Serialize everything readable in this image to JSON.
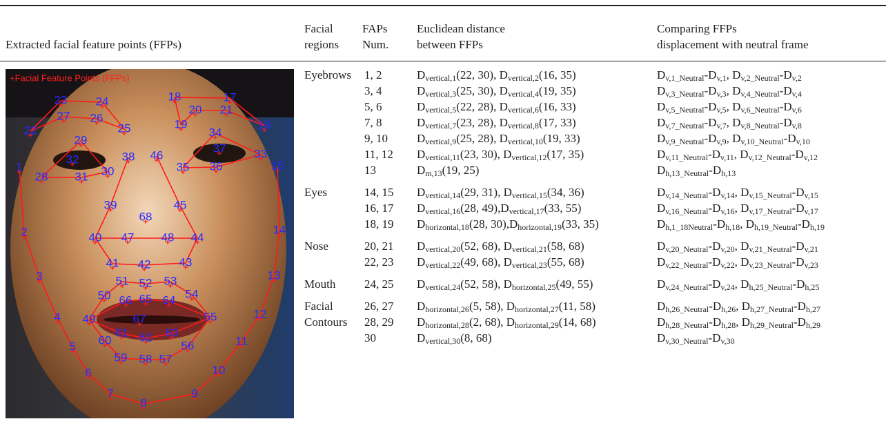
{
  "header": {
    "image_col": "Extracted facial feature points (FFPs)",
    "region_col": [
      "Facial",
      "regions"
    ],
    "faps_col": [
      "FAPs",
      "Num."
    ],
    "distance_col": [
      "Euclidean distance",
      "between FFPs"
    ],
    "compare_col": [
      "Comparing FFPs",
      "displacement with neutral frame"
    ]
  },
  "image": {
    "caption": "+Facial Feature Points (FFPs)",
    "points": [
      "1",
      "2",
      "3",
      "4",
      "5",
      "6",
      "7",
      "8",
      "9",
      "10",
      "11",
      "12",
      "13",
      "14",
      "15",
      "16",
      "17",
      "18",
      "19",
      "20",
      "21",
      "22",
      "23",
      "24",
      "25",
      "26",
      "27",
      "28",
      "29",
      "30",
      "31",
      "32",
      "33",
      "34",
      "35",
      "36",
      "37",
      "38",
      "39",
      "40",
      "41",
      "42",
      "43",
      "44",
      "45",
      "46",
      "47",
      "48",
      "49",
      "50",
      "51",
      "52",
      "53",
      "54",
      "55",
      "56",
      "57",
      "58",
      "59",
      "60",
      "61",
      "62",
      "63",
      "64",
      "65",
      "66",
      "67",
      "68"
    ]
  },
  "groups": [
    {
      "region": "Eyebrows",
      "rows": [
        {
          "faps": "1, 2",
          "distance": [
            "D",
            {
              "sub": "vertical,1"
            },
            "(22, 30), D",
            {
              "sub": "vertical,2"
            },
            "(16, 35)"
          ],
          "compare": [
            "D",
            {
              "sub": "v,1_Neutral"
            },
            "-D",
            {
              "sub": "v,1"
            },
            ", D",
            {
              "sub": "v,2_Neutral"
            },
            "-D",
            {
              "sub": "v,2"
            }
          ]
        },
        {
          "faps": "3, 4",
          "distance": [
            "D",
            {
              "sub": "vertical,3"
            },
            "(25, 30), D",
            {
              "sub": "vertical,4"
            },
            "(19, 35)"
          ],
          "compare": [
            "D",
            {
              "sub": "v,3_Neutral"
            },
            "-D",
            {
              "sub": "v,3"
            },
            ", D",
            {
              "sub": "v,4_Neutral"
            },
            "-D",
            {
              "sub": "v,4"
            }
          ]
        },
        {
          "faps": "5, 6",
          "distance": [
            "D",
            {
              "sub": "vertical,5"
            },
            "(22, 28), D",
            {
              "sub": "vertical,6"
            },
            "(16, 33)"
          ],
          "compare": [
            "D",
            {
              "sub": "v,5_Neutral"
            },
            "-D",
            {
              "sub": "v,5"
            },
            ", D",
            {
              "sub": "v,6_Neutral"
            },
            "-D",
            {
              "sub": "v,6"
            }
          ]
        },
        {
          "faps": "7, 8",
          "distance": [
            "D",
            {
              "sub": "vertical,7"
            },
            "(23, 28), D",
            {
              "sub": "vertical,8"
            },
            "(17, 33)"
          ],
          "compare": [
            "D",
            {
              "sub": "v,7_Neutral"
            },
            "-D",
            {
              "sub": "v,7"
            },
            ", D",
            {
              "sub": "v,8_Neutral"
            },
            "-D",
            {
              "sub": "v,8"
            }
          ]
        },
        {
          "faps": "9, 10",
          "distance": [
            "D",
            {
              "sub": "vertical,9"
            },
            "(25, 28), D",
            {
              "sub": "vertical,10"
            },
            "(19, 33)"
          ],
          "compare": [
            "D",
            {
              "sub": "v,9_Neutral"
            },
            "-D",
            {
              "sub": "v,9"
            },
            ", D",
            {
              "sub": "v,10_Neutral"
            },
            "-D",
            {
              "sub": "v,10"
            }
          ]
        },
        {
          "faps": "11, 12",
          "distance": [
            "D",
            {
              "sub": "vertical,11"
            },
            "(23, 30), D",
            {
              "sub": "vertical,12"
            },
            "(17, 35)"
          ],
          "compare": [
            "D",
            {
              "sub": "v,11_Neutral"
            },
            "-D",
            {
              "sub": "v,11"
            },
            ", D",
            {
              "sub": "v,12_Neutral"
            },
            "-D",
            {
              "sub": "v,12"
            }
          ]
        },
        {
          "faps": "13",
          "distance": [
            "D",
            {
              "sub": "m,13"
            },
            "(19, 25)"
          ],
          "compare": [
            "D",
            {
              "sub": "h,13_Neutral"
            },
            "-D",
            {
              "sub": "h,13"
            }
          ]
        }
      ]
    },
    {
      "region": "Eyes",
      "rows": [
        {
          "faps": "14, 15",
          "distance": [
            "D",
            {
              "sub": "vertical,14"
            },
            "(29, 31), D",
            {
              "sub": "vertical,15"
            },
            "(34, 36)"
          ],
          "compare": [
            "D",
            {
              "sub": "v,14_Neutral"
            },
            "-D",
            {
              "sub": "v,14"
            },
            ", D",
            {
              "sub": "v,15_Neutral"
            },
            "-D",
            {
              "sub": "v,15"
            }
          ]
        },
        {
          "faps": "16, 17",
          "distance": [
            "D",
            {
              "sub": "vertical,16"
            },
            "(28, 49),D",
            {
              "sub": "vertical,17"
            },
            "(33, 55)"
          ],
          "compare": [
            "D",
            {
              "sub": "v,16_Neutral"
            },
            "-D",
            {
              "sub": "v,16"
            },
            ", D",
            {
              "sub": "v,17_Neutral"
            },
            "-D",
            {
              "sub": "v,17"
            }
          ]
        },
        {
          "faps": "18, 19",
          "distance": [
            "D",
            {
              "sub": "horizontal,18"
            },
            "(28, 30),D",
            {
              "sub": "horizontal,19"
            },
            "(33, 35)"
          ],
          "compare": [
            "D",
            {
              "sub": "h,1_18Neutral"
            },
            "-D",
            {
              "sub": "h,18"
            },
            ", D",
            {
              "sub": "h,19_Neutral"
            },
            "-D",
            {
              "sub": "h,19"
            }
          ]
        }
      ]
    },
    {
      "region": "Nose",
      "rows": [
        {
          "faps": "20, 21",
          "distance": [
            "D",
            {
              "sub": "vertical,20"
            },
            "(52, 68), D",
            {
              "sub": "vertical,21"
            },
            "(58, 68)"
          ],
          "compare": [
            "D",
            {
              "sub": "v,20_Neutral"
            },
            "-D",
            {
              "sub": "v,20"
            },
            ", D",
            {
              "sub": "v,21_Neutral"
            },
            "-D",
            {
              "sub": "v,21"
            }
          ]
        },
        {
          "faps": "22, 23",
          "distance": [
            "D",
            {
              "sub": "vertical,22"
            },
            "(49, 68), D",
            {
              "sub": "vertical,23"
            },
            "(55, 68)"
          ],
          "compare": [
            "D",
            {
              "sub": "v,22_Neutral"
            },
            "-D",
            {
              "sub": "v,22"
            },
            ", D",
            {
              "sub": "v,23_Neutral"
            },
            "-D",
            {
              "sub": "v,23"
            }
          ]
        }
      ]
    },
    {
      "region": "Mouth",
      "rows": [
        {
          "faps": "24, 25",
          "distance": [
            "D",
            {
              "sub": "vertical,24"
            },
            "(52, 58), D",
            {
              "sub": "horizontal,25"
            },
            "(49, 55)"
          ],
          "compare": [
            "D",
            {
              "sub": "v,24_Neutral"
            },
            "-D",
            {
              "sub": "v,24"
            },
            ", D",
            {
              "sub": "h,25_Neutral"
            },
            "-D",
            {
              "sub": "h,25"
            }
          ]
        }
      ]
    },
    {
      "region": "Facial Contours",
      "rows": [
        {
          "faps": "26, 27",
          "distance": [
            "D",
            {
              "sub": "horizontal,26"
            },
            "(5, 58), D",
            {
              "sub": "horizontal,27"
            },
            "(11, 58)"
          ],
          "compare": [
            "D",
            {
              "sub": "h,26_Neutral"
            },
            "-D",
            {
              "sub": "h,26"
            },
            ", D",
            {
              "sub": "h,27_Neutral"
            },
            "-D",
            {
              "sub": "h,27"
            }
          ]
        },
        {
          "faps": "28, 29",
          "distance": [
            "D",
            {
              "sub": "horizontal,28"
            },
            "(2, 68), D",
            {
              "sub": "horizontal,29"
            },
            "(14, 68)"
          ],
          "compare": [
            "D",
            {
              "sub": "h,28_Neutral"
            },
            "-D",
            {
              "sub": "h,28"
            },
            ", D",
            {
              "sub": "h,29_Neutral"
            },
            "-D",
            {
              "sub": "h,29"
            }
          ]
        },
        {
          "faps": "30",
          "distance": [
            "D",
            {
              "sub": "vertical,30"
            },
            "(8, 68)"
          ],
          "compare": [
            "D",
            {
              "sub": "v,30_Neutral"
            },
            "-D",
            {
              "sub": "v,30"
            }
          ]
        }
      ]
    }
  ]
}
